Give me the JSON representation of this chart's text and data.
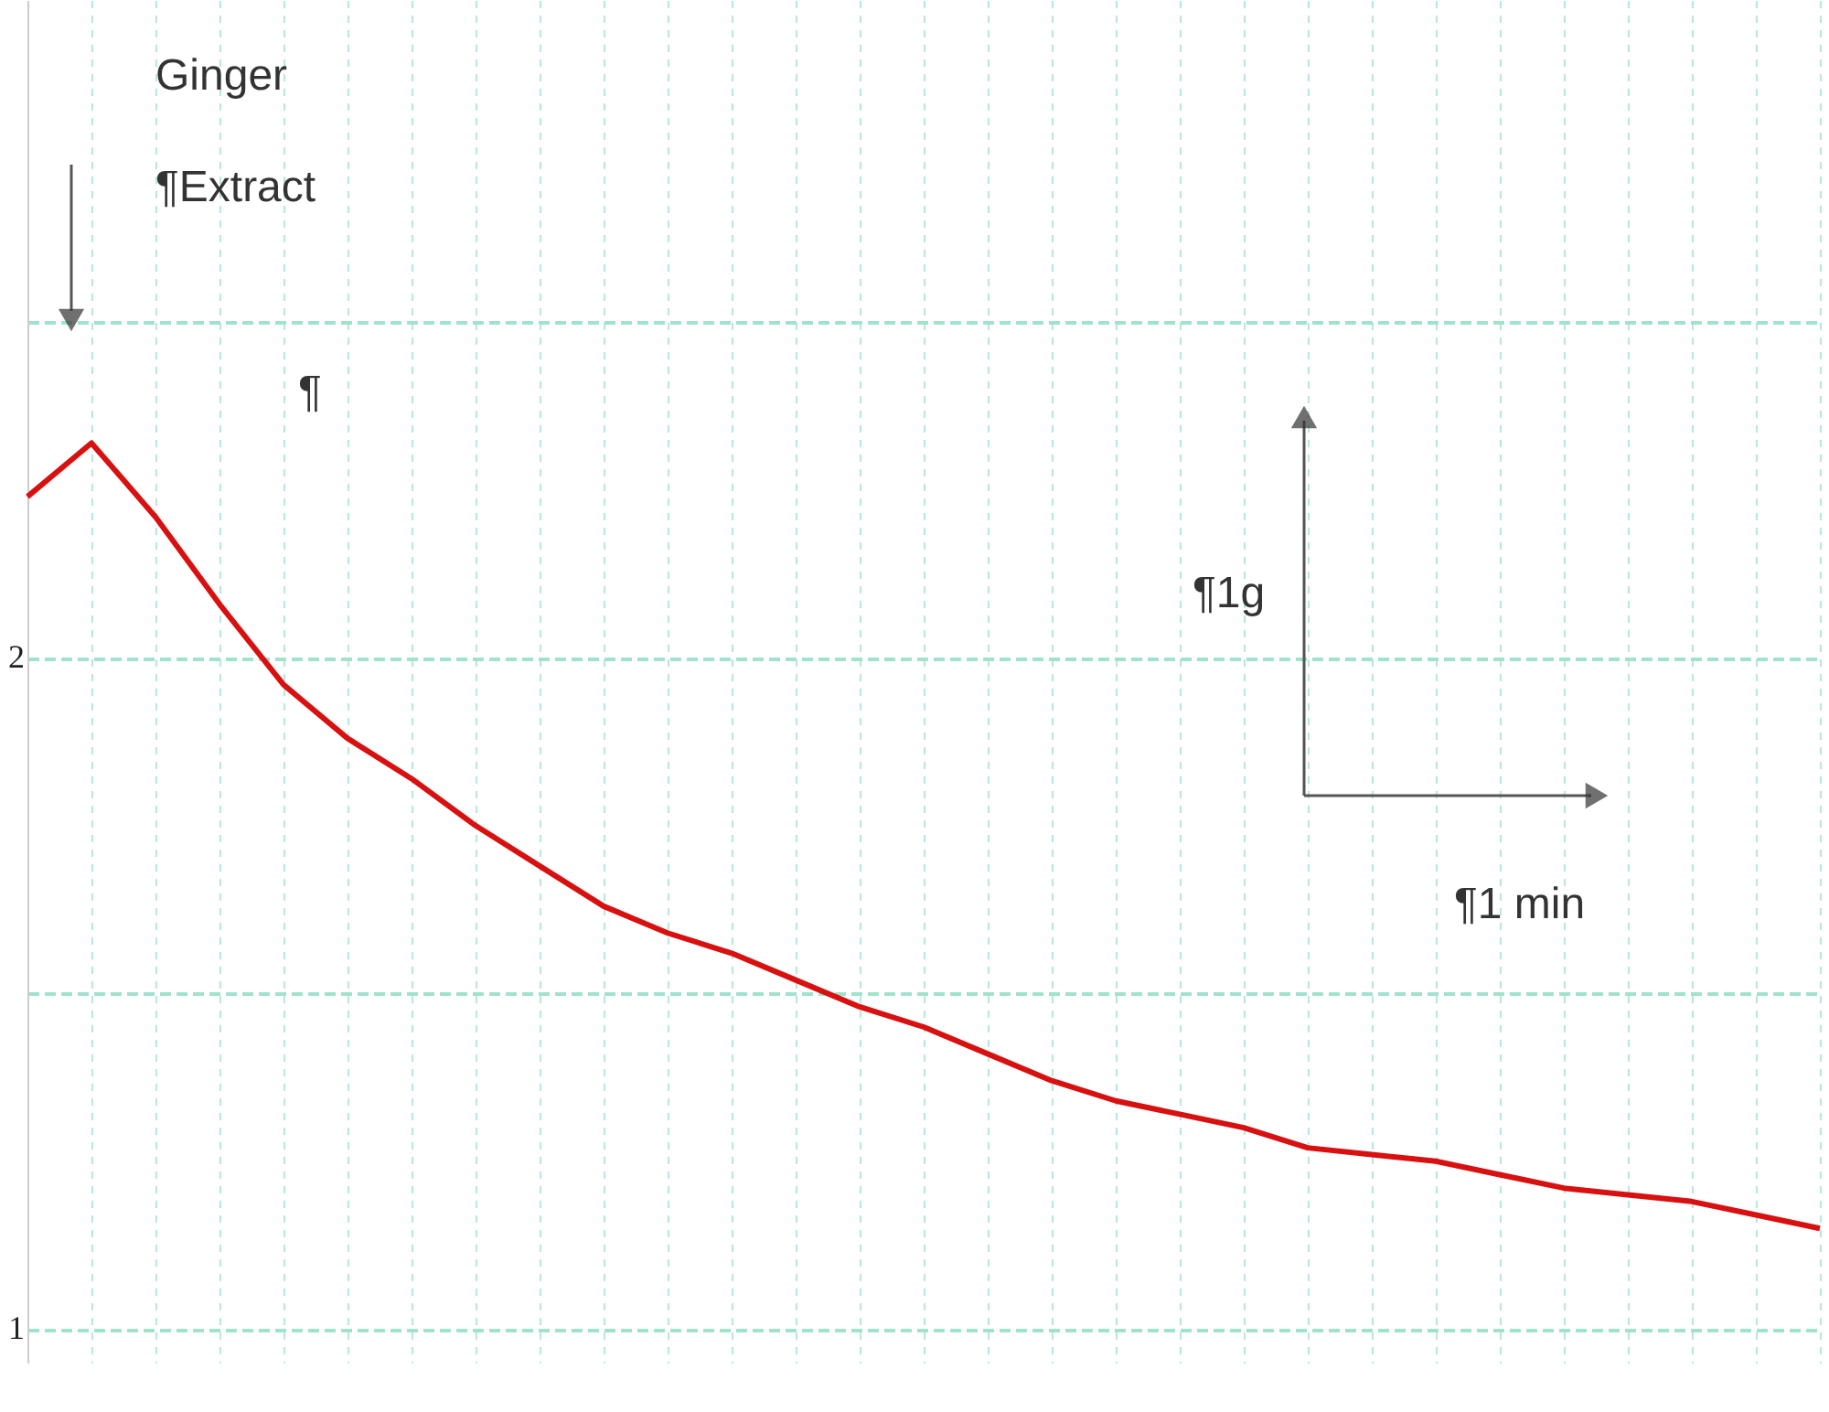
{
  "chart_data": {
    "type": "line",
    "annotations": [
      "Ginger",
      "¶Extract",
      "¶",
      "¶1g",
      "¶1 min"
    ],
    "categories": [
      null,
      null,
      null,
      null,
      null,
      null,
      null,
      null,
      null,
      null,
      null,
      null,
      null,
      null,
      null,
      null,
      null,
      null,
      null,
      null,
      null,
      null,
      null,
      null,
      null,
      null,
      null,
      null,
      null
    ],
    "series": [
      {
        "color": "#d81010",
        "values": [
          2.24,
          2.32,
          2.21,
          2.08,
          1.96,
          1.88,
          1.82,
          1.75,
          1.69,
          1.63,
          1.59,
          1.56,
          1.52,
          1.48,
          1.45,
          1.41,
          1.37,
          1.34,
          1.32,
          1.3,
          1.27,
          1.26,
          1.25,
          1.23,
          1.21,
          1.2,
          1.19,
          1.17,
          1.15
        ]
      }
    ],
    "ylim": [
      0.95,
      2.98
    ],
    "yticks": [
      1,
      {
        "value": 1.5,
        "label": null
      },
      2,
      {
        "value": 2.5,
        "label": null
      }
    ],
    "grid": true,
    "line_style": "solid",
    "marker": "none"
  }
}
